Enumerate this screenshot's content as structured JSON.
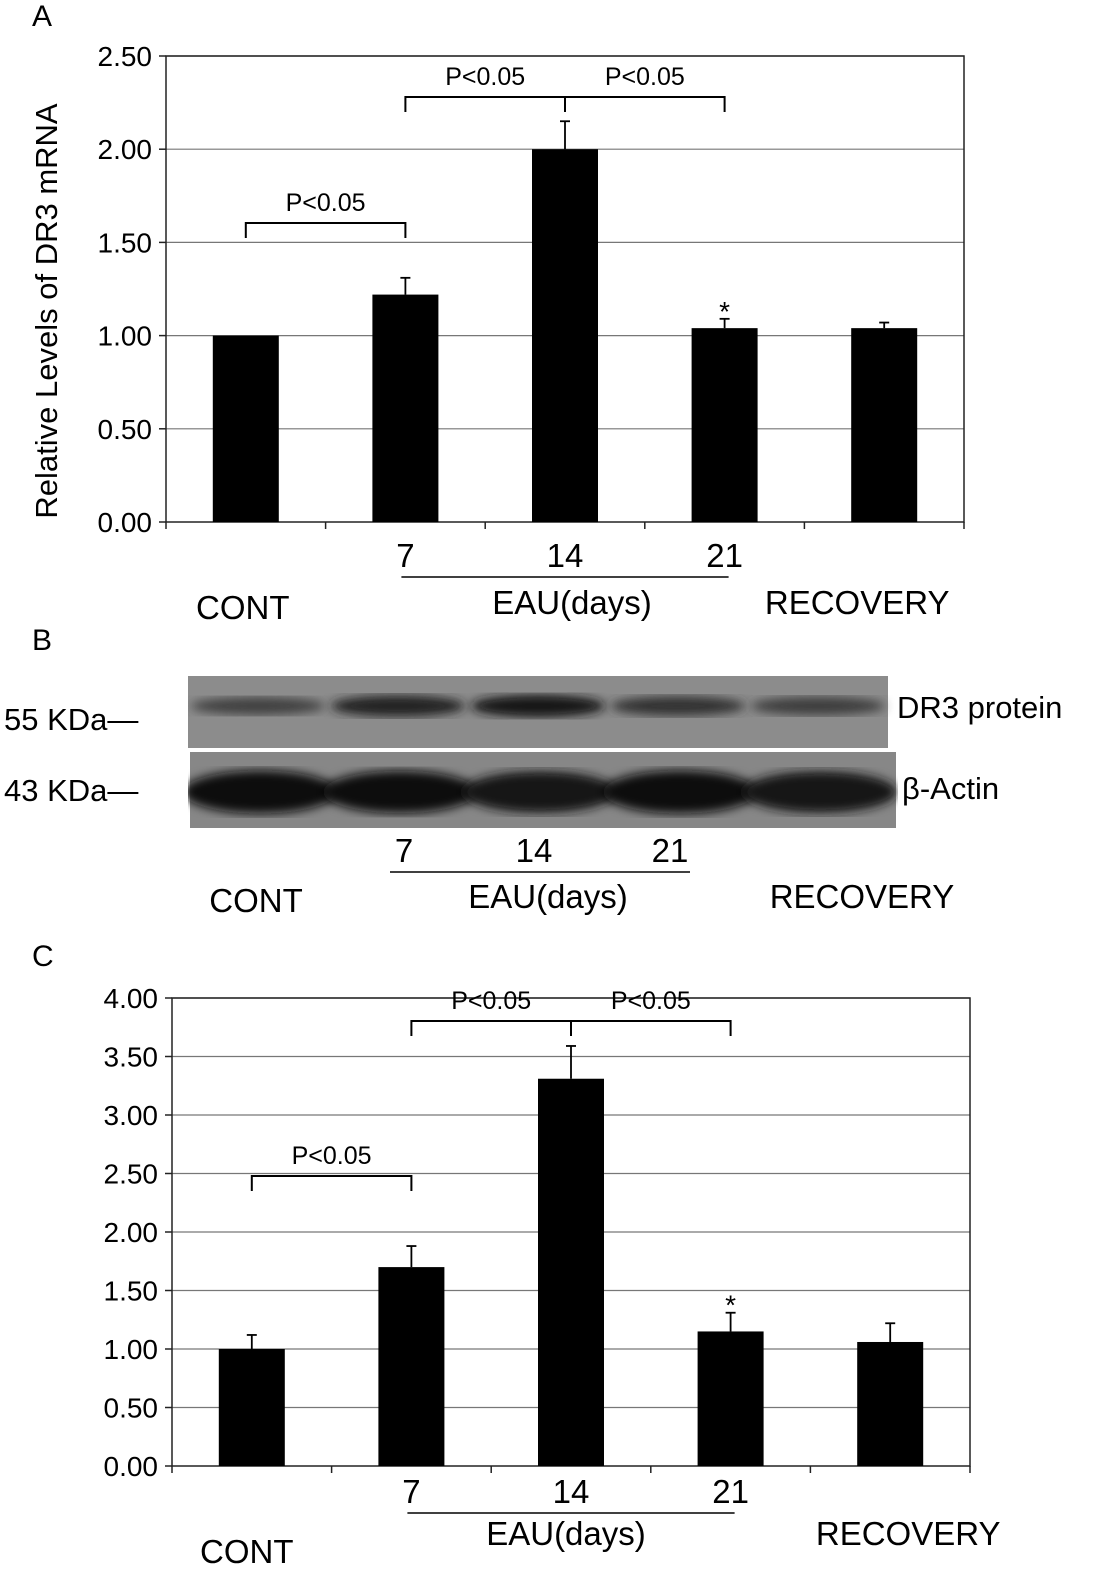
{
  "chart_data": [
    {
      "panel": "A",
      "type": "bar",
      "ylabel": "Relative Levels of DR3 mRNA",
      "ylim": [
        0,
        2.5
      ],
      "yticks": [
        "0.00",
        "0.50",
        "1.00",
        "1.50",
        "2.00",
        "2.50"
      ],
      "categories": [
        "CONT",
        "7",
        "14",
        "21",
        "RECOVERY"
      ],
      "values": [
        1.0,
        1.22,
        2.0,
        1.04,
        1.04
      ],
      "error_upper": [
        0,
        0.09,
        0.15,
        0.05,
        0.03
      ],
      "star": [
        false,
        false,
        false,
        true,
        false
      ],
      "star_text": "*",
      "group_label": "EAU(days)",
      "group_ticks": [
        "7",
        "14",
        "21"
      ],
      "cat_left": "CONT",
      "cat_right": "RECOVERY",
      "grid": true,
      "significance": [
        {
          "from": 0,
          "to": 1,
          "label": "P<0.05"
        },
        {
          "from": 1,
          "to": 2,
          "label": "P<0.05"
        },
        {
          "from": 2,
          "to": 3,
          "label": "P<0.05"
        }
      ]
    },
    {
      "panel": "C",
      "type": "bar",
      "ylabel": "",
      "ylim": [
        0,
        4.0
      ],
      "yticks": [
        "0.00",
        "0.50",
        "1.00",
        "1.50",
        "2.00",
        "2.50",
        "3.00",
        "3.50",
        "4.00"
      ],
      "categories": [
        "CONT",
        "7",
        "14",
        "21",
        "RECOVERY"
      ],
      "values": [
        1.0,
        1.7,
        3.31,
        1.15,
        1.06
      ],
      "error_upper": [
        0.12,
        0.18,
        0.28,
        0.16,
        0.16
      ],
      "star": [
        false,
        false,
        false,
        true,
        false
      ],
      "star_text": "*",
      "group_label": "EAU(days)",
      "group_ticks": [
        "7",
        "14",
        "21"
      ],
      "cat_left": "CONT",
      "cat_right": "RECOVERY",
      "grid": true,
      "significance": [
        {
          "from": 0,
          "to": 1,
          "label": "P<0.05"
        },
        {
          "from": 1,
          "to": 2,
          "label": "P<0.05"
        },
        {
          "from": 2,
          "to": 3,
          "label": "P<0.05"
        }
      ]
    }
  ],
  "panels": {
    "a": "A",
    "b": "B",
    "c": "C"
  },
  "blot": {
    "marker_top": "55 KDa—",
    "marker_bottom": "43 KDa—",
    "label_top": "DR3 protein",
    "label_bottom": "β-Actin",
    "band_intensity_top": [
      0.45,
      0.75,
      0.85,
      0.6,
      0.5
    ],
    "band_intensity_bottom": [
      0.95,
      0.9,
      0.85,
      0.95,
      0.85
    ],
    "ticks": [
      "7",
      "14",
      "21"
    ],
    "group_label": "EAU(days)",
    "cat_left": "CONT",
    "cat_right": "RECOVERY"
  }
}
